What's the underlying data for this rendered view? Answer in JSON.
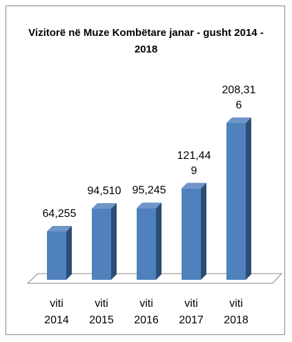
{
  "chart_data": {
    "type": "bar",
    "title": "Vizitorë në Muze Kombëtare janar - gusht 2014 - 2018",
    "categories": [
      "viti 2014",
      "viti 2015",
      "viti 2016",
      "viti 2017",
      "viti 2018"
    ],
    "values": [
      64255,
      94510,
      95245,
      121449,
      208316
    ],
    "value_labels": [
      "64,255",
      "94,510",
      "95,245",
      "121,449",
      "208,316"
    ],
    "color": "#4f81bd"
  }
}
